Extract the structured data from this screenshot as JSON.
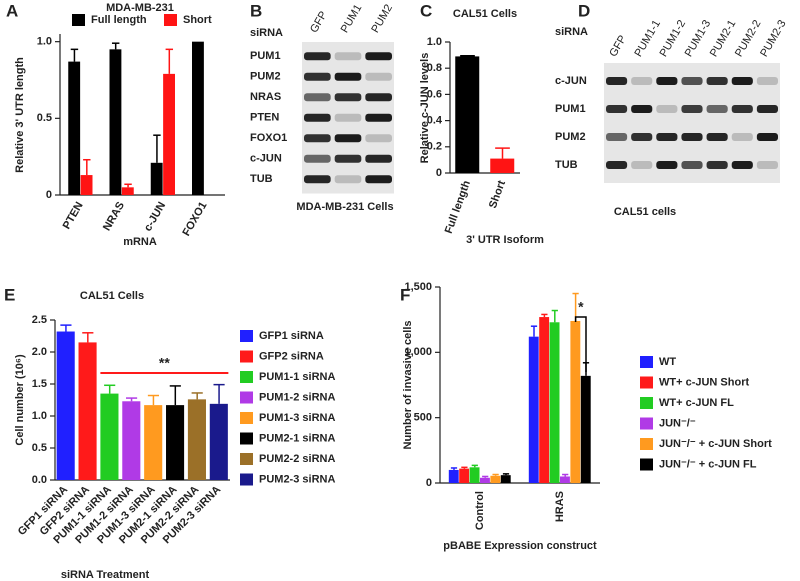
{
  "chart_data": [
    {
      "panel": "A",
      "type": "bar",
      "title": "MDA-MB-231",
      "y_label": "Relative 3' UTR length",
      "x_label": "mRNA",
      "categories": [
        "PTEN",
        "NRAS",
        "c-JUN",
        "FOXO1"
      ],
      "series": [
        {
          "name": "Full length",
          "color": "#000000",
          "values": [
            0.87,
            0.95,
            0.21,
            1.0
          ],
          "errors": [
            0.08,
            0.04,
            0.18,
            0
          ]
        },
        {
          "name": "Short",
          "color": "#ff1414",
          "values": [
            0.13,
            0.05,
            0.79,
            null
          ],
          "errors": [
            0.1,
            0.02,
            0.16,
            null
          ]
        }
      ],
      "ylim": [
        0,
        1.05
      ],
      "yticks": [
        0,
        0.5,
        {
          "value": 1,
          "label": "1.0"
        }
      ],
      "legend": "top"
    },
    {
      "panel": "C",
      "type": "bar",
      "title": "CAL51 Cells",
      "y_label": "Relative c-JUN levels",
      "x_label": "3' UTR Isoform",
      "categories": [
        "Full length",
        "Short"
      ],
      "values": [
        0.89,
        0.11
      ],
      "errors": [
        0.005,
        0.08
      ],
      "colors": [
        "#000000",
        "#ff1414"
      ],
      "ylim": [
        0,
        1
      ],
      "yticks": [
        0,
        0.2,
        0.4,
        0.6,
        0.8,
        {
          "value": 1,
          "label": "1.0"
        }
      ]
    },
    {
      "panel": "E",
      "type": "bar",
      "title": "CAL51 Cells",
      "y_label": "Cell number (10⁶)",
      "x_label": "siRNA Treatment",
      "categories": [
        "GFP1 siRNA",
        "GFP2 siRNA",
        "PUM1-1 siRNA",
        "PUM1-2 siRNA",
        "PUM1-3 siRNA",
        "PUM2-1 siRNA",
        "PUM2-2 siRNA",
        "PUM2-3 siRNA"
      ],
      "values": [
        2.32,
        2.15,
        1.35,
        1.23,
        1.17,
        1.17,
        1.26,
        1.19
      ],
      "errors": [
        0.1,
        0.15,
        0.13,
        0.05,
        0.15,
        0.3,
        0.1,
        0.3
      ],
      "colors": [
        "#2020ff",
        "#ff1a1a",
        "#22cc22",
        "#b03ae6",
        "#ff9a1f",
        "#000000",
        "#9b7028",
        "#1a1a8c"
      ],
      "ylim": [
        0,
        2.5
      ],
      "yticks": [
        {
          "value": 0,
          "label": "0.0"
        },
        0.5,
        {
          "value": 1,
          "label": "1.0"
        },
        1.5,
        {
          "value": 2,
          "label": "2.0"
        },
        2.5
      ],
      "legend": "right",
      "annotations": [
        {
          "text": "**"
        }
      ]
    },
    {
      "panel": "F",
      "type": "bar",
      "y_label": "Number of invasive cells",
      "x_label": "pBABE Expression construct",
      "categories": [
        "Control",
        "HRAS"
      ],
      "series": [
        {
          "name": "WT",
          "color": "#2020ff",
          "values": [
            100,
            1120
          ],
          "errors": [
            15,
            80
          ]
        },
        {
          "name": "WT+ c-JUN Short",
          "color": "#ff1a1a",
          "values": [
            110,
            1270
          ],
          "errors": [
            10,
            20
          ]
        },
        {
          "name": "WT+ c-JUN FL",
          "color": "#22cc22",
          "values": [
            120,
            1230
          ],
          "errors": [
            15,
            90
          ]
        },
        {
          "name": "JUN⁻/⁻",
          "color": "#b03ae6",
          "values": [
            40,
            50
          ],
          "errors": [
            10,
            15
          ]
        },
        {
          "name": "JUN⁻/⁻ + c-JUN Short",
          "color": "#ff9a1f",
          "values": [
            55,
            1240
          ],
          "errors": [
            10,
            210
          ]
        },
        {
          "name": "JUN⁻/⁻ + c-JUN FL",
          "color": "#000000",
          "values": [
            60,
            820
          ],
          "errors": [
            10,
            100
          ]
        }
      ],
      "ylim": [
        0,
        1500
      ],
      "yticks": [
        0,
        500,
        {
          "value": 1000,
          "label": "1,000"
        },
        {
          "value": 1500,
          "label": "1,500"
        }
      ],
      "legend": "right",
      "annotations": [
        {
          "text": "*"
        }
      ]
    }
  ],
  "blots": [
    {
      "panel": "B",
      "label": "siRNA",
      "columns": [
        "GFP",
        "PUM1",
        "PUM2"
      ],
      "rows": [
        "PUM1",
        "PUM2",
        "NRAS",
        "PTEN",
        "FOXO1",
        "c-JUN",
        "TUB"
      ],
      "caption": "MDA-MB-231 Cells"
    },
    {
      "panel": "D",
      "label": "siRNA",
      "columns": [
        "GFP",
        "PUM1-1",
        "PUM1-2",
        "PUM1-3",
        "PUM2-1",
        "PUM2-2",
        "PUM2-3"
      ],
      "rows": [
        "c-JUN",
        "PUM1",
        "PUM2",
        "TUB"
      ],
      "caption": "CAL51 cells"
    }
  ]
}
